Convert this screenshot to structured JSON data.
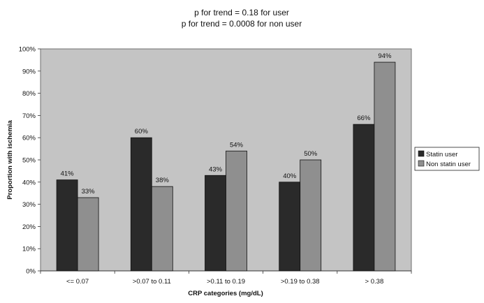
{
  "chart_data": {
    "type": "bar",
    "title_lines": [
      "p for trend = 0.18 for user",
      "p for trend = 0.0008 for non user"
    ],
    "xlabel": "CRP categories (mg/dL)",
    "ylabel": "Proportion with ischemia",
    "categories": [
      "<= 0.07",
      ">0.07 to 0.11",
      ">0.11 to 0.19",
      ">0.19 to 0.38",
      "> 0.38"
    ],
    "series": [
      {
        "name": "Statin user",
        "values": [
          41,
          60,
          43,
          40,
          66
        ],
        "labels": [
          "41%",
          "60%",
          "43%",
          "40%",
          "66%"
        ],
        "color": "#2a2a2a"
      },
      {
        "name": "Non statin user",
        "values": [
          33,
          38,
          54,
          50,
          94
        ],
        "labels": [
          "33%",
          "38%",
          "54%",
          "50%",
          "94%"
        ],
        "color": "#8f8f8f"
      }
    ],
    "yticks": [
      "0%",
      "10%",
      "20%",
      "30%",
      "40%",
      "50%",
      "60%",
      "70%",
      "80%",
      "90%",
      "100%"
    ],
    "ylim": [
      0,
      100
    ],
    "legend_position": "right",
    "plot_background": "#c4c4c4",
    "grid": false
  }
}
